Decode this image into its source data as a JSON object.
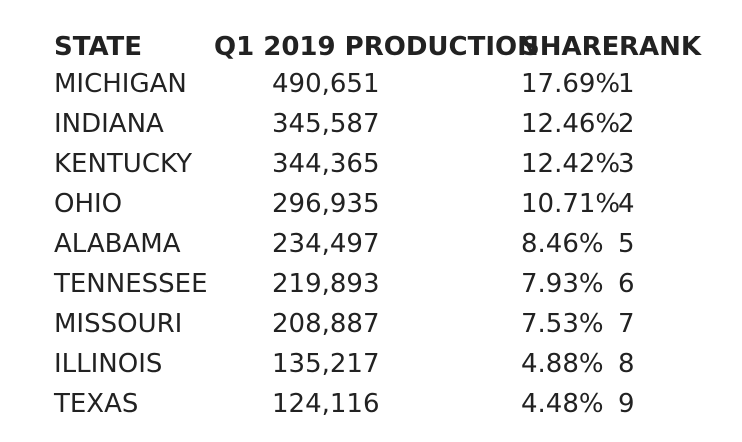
{
  "table": {
    "headers": {
      "state": "STATE",
      "production": "Q1 2019 PRODUCTION",
      "share": "SHARE",
      "rank": "RANK"
    },
    "rows": [
      {
        "state": "MICHIGAN",
        "production": "490,651",
        "share": "17.69%",
        "rank": "1"
      },
      {
        "state": "INDIANA",
        "production": "345,587",
        "share": "12.46%",
        "rank": "2"
      },
      {
        "state": "KENTUCKY",
        "production": "344,365",
        "share": "12.42%",
        "rank": "3"
      },
      {
        "state": "OHIO",
        "production": "296,935",
        "share": "10.71%",
        "rank": "4"
      },
      {
        "state": "ALABAMA",
        "production": "234,497",
        "share": "8.46%",
        "rank": "5"
      },
      {
        "state": "TENNESSEE",
        "production": "219,893",
        "share": "7.93%",
        "rank": "6"
      },
      {
        "state": "MISSOURI",
        "production": "208,887",
        "share": "7.53%",
        "rank": "7"
      },
      {
        "state": "ILLINOIS",
        "production": "135,217",
        "share": "4.88%",
        "rank": "8"
      },
      {
        "state": "TEXAS",
        "production": "124,116",
        "share": "4.48%",
        "rank": "9"
      }
    ]
  }
}
